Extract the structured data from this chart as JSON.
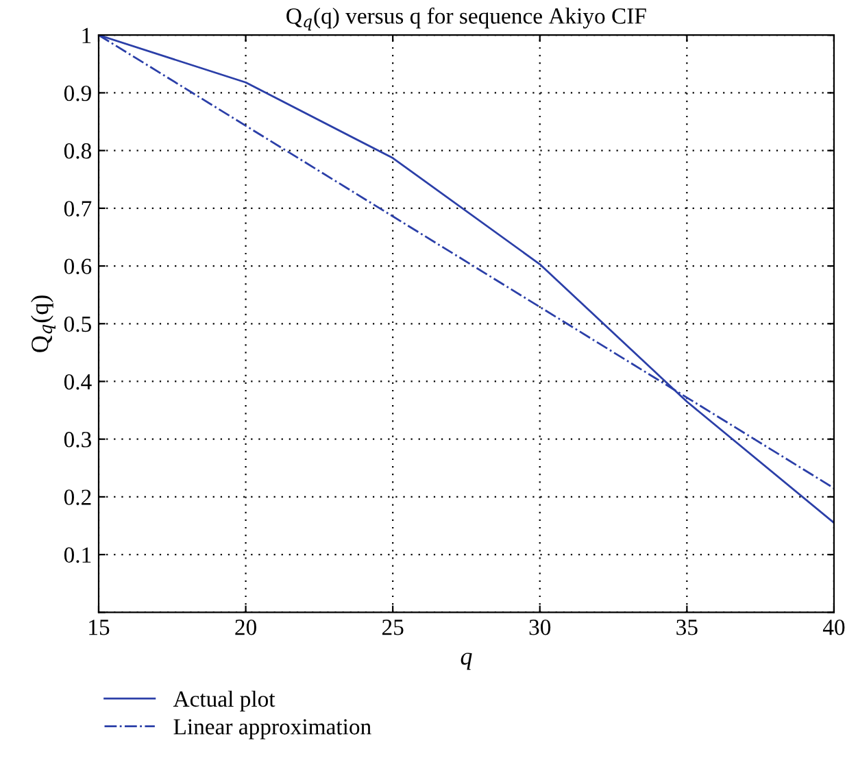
{
  "chart_data": {
    "type": "line",
    "title": "Q$_{q}$(q) versus q for sequence Akiyo CIF",
    "xlabel": "q",
    "ylabel": "Q$_{q}$(q)",
    "x": [
      15,
      20,
      25,
      30,
      35,
      40
    ],
    "series": [
      {
        "name": "Actual plot",
        "color": "#2b3fa8",
        "line_style": "solid",
        "values": [
          1.0,
          0.918,
          0.787,
          0.603,
          0.365,
          0.155
        ]
      },
      {
        "name": "Linear approximation",
        "color": "#2b3fa8",
        "line_style": "dashdot",
        "x": [
          15,
          40
        ],
        "values": [
          1.0,
          0.215
        ]
      }
    ],
    "xlim": [
      15,
      40
    ],
    "xticks": [
      15,
      20,
      25,
      30,
      35,
      40
    ],
    "ylim": [
      0,
      1
    ],
    "yticks": [
      {
        "value": 0,
        "label": null
      },
      0.1,
      0.2,
      0.3,
      0.4,
      0.5,
      0.6,
      0.7,
      0.8,
      0.9,
      1
    ],
    "grid": true,
    "legend": "bottom left",
    "marker": "none"
  }
}
